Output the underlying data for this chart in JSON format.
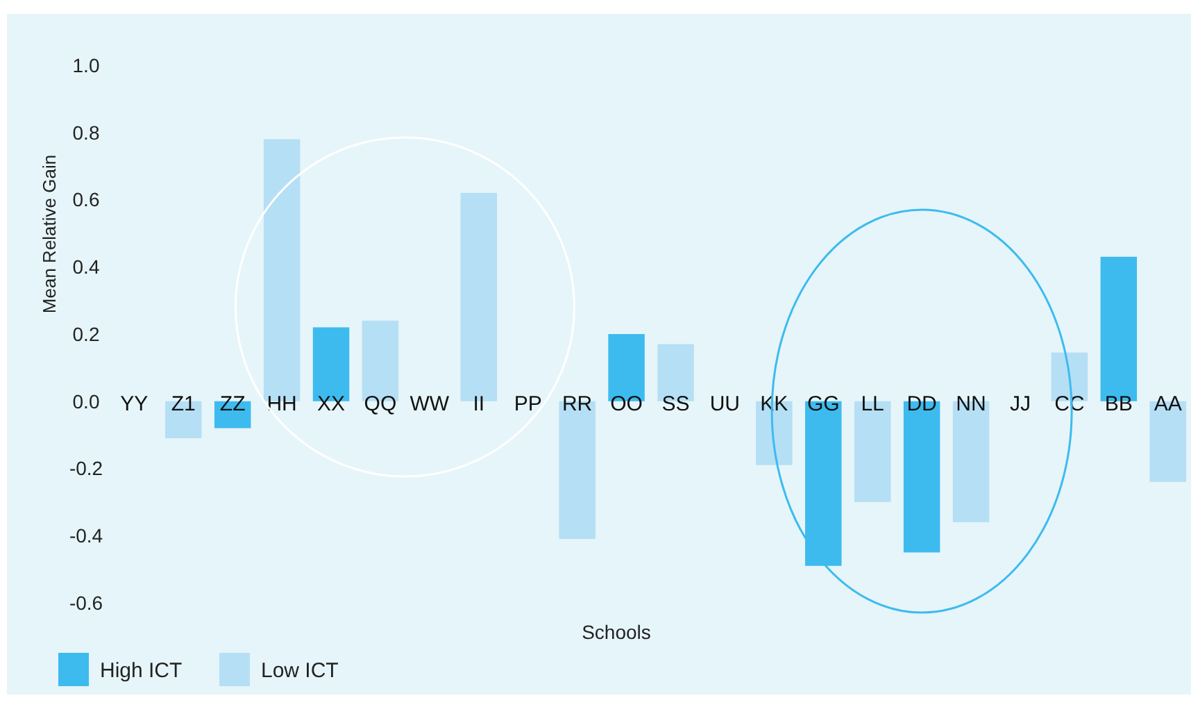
{
  "chart_data": {
    "type": "bar",
    "stacked": true,
    "xlabel": "Schools",
    "ylabel": "Mean Relative Gain",
    "categories": [
      "YY",
      "Z1",
      "ZZ",
      "HH",
      "XX",
      "QQ",
      "WW",
      "II",
      "PP",
      "RR",
      "OO",
      "SS",
      "UU",
      "KK",
      "GG",
      "LL",
      "DD",
      "NN",
      "JJ",
      "CC",
      "BB",
      "AA"
    ],
    "series": [
      {
        "name": "High ICT",
        "color": "#3dbbef",
        "values": [
          null,
          null,
          -0.08,
          null,
          0.22,
          null,
          null,
          null,
          null,
          null,
          0.2,
          null,
          null,
          null,
          -0.49,
          null,
          -0.45,
          null,
          null,
          null,
          0.43,
          null
        ]
      },
      {
        "name": "Low ICT",
        "color": "#b5dff5",
        "values": [
          null,
          -0.11,
          null,
          0.78,
          null,
          0.24,
          null,
          0.62,
          null,
          -0.41,
          null,
          0.17,
          null,
          -0.19,
          null,
          -0.3,
          null,
          -0.36,
          null,
          0.145,
          null,
          -0.24
        ]
      }
    ],
    "ylim": [
      -0.6,
      1.0
    ],
    "yticks": [
      {
        "value": -0.6,
        "label": "-0.6"
      },
      {
        "value": -0.4,
        "label": "-0.4"
      },
      {
        "value": -0.2,
        "label": "-0.2"
      },
      {
        "value": 0,
        "label": "0.0"
      },
      {
        "value": 0.2,
        "label": "0.2"
      },
      {
        "value": 0.4,
        "label": "0.4"
      },
      {
        "value": 0.6,
        "label": "0.6"
      },
      {
        "value": 0.8,
        "label": "0.8"
      },
      {
        "value": 1.0,
        "label": "1.0"
      }
    ],
    "grid": false,
    "legend": "bottom left"
  }
}
